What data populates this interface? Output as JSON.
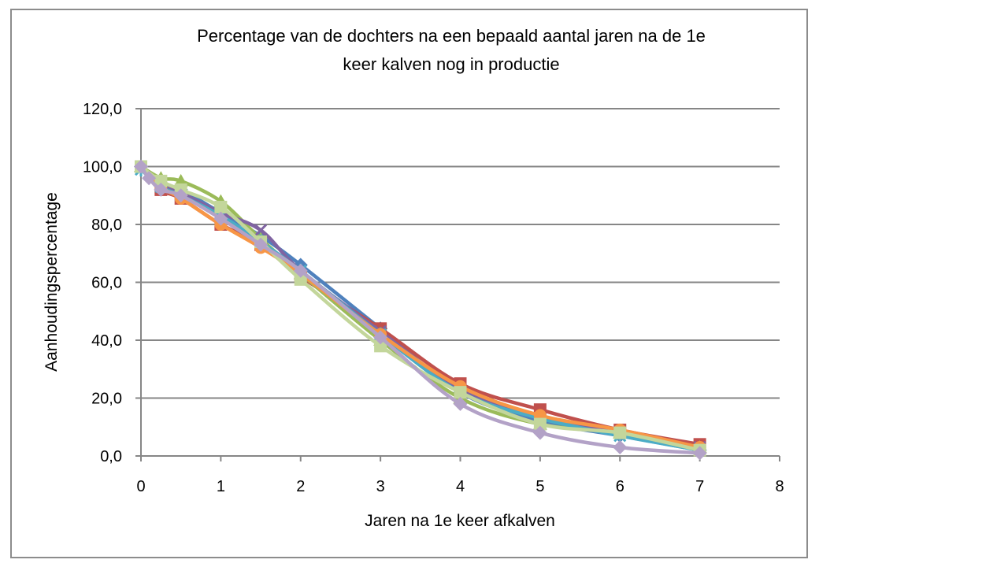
{
  "chart_data": {
    "type": "line",
    "title_lines": [
      "Percentage van de dochters na een bepaald aantal jaren na de 1e",
      "keer kalven nog in productie"
    ],
    "xlabel": "Jaren na 1e keer afkalven",
    "ylabel": "Aanhoudingspercentage",
    "xlim": [
      0,
      8
    ],
    "ylim": [
      0,
      120
    ],
    "x_ticks": [
      "0",
      "1",
      "2",
      "3",
      "4",
      "5",
      "6",
      "7",
      "8"
    ],
    "y_ticks": [
      "0,0",
      "20,0",
      "40,0",
      "60,0",
      "80,0",
      "100,0",
      "120,0"
    ],
    "grid": "horizontal",
    "legend": "none",
    "series": [
      {
        "color": "#4f81bd",
        "marker": "diamond",
        "x": [
          0,
          0.25,
          0.5,
          1,
          1.5,
          2,
          3,
          4,
          5,
          6,
          7
        ],
        "y": [
          100,
          94,
          92,
          84,
          76,
          66,
          44,
          22,
          12,
          7,
          2
        ]
      },
      {
        "color": "#c0504d",
        "marker": "square",
        "x": [
          0,
          0.25,
          0.5,
          1,
          1.5,
          2,
          3,
          4,
          5,
          6,
          7
        ],
        "y": [
          100,
          92,
          89,
          80,
          73,
          62,
          44,
          25,
          16,
          9,
          4
        ]
      },
      {
        "color": "#9bbb59",
        "marker": "triangle",
        "x": [
          0,
          0.25,
          0.5,
          1,
          1.5,
          2,
          3,
          4,
          5,
          6,
          7
        ],
        "y": [
          100,
          96,
          95,
          88,
          75,
          63,
          40,
          20,
          11,
          8,
          3
        ]
      },
      {
        "color": "#8064a2",
        "marker": "cross",
        "x": [
          0,
          0.25,
          0.5,
          1,
          1.5,
          2,
          3,
          4,
          5,
          6,
          7
        ],
        "y": [
          100,
          94,
          91,
          84,
          78,
          64,
          43,
          23,
          13,
          8,
          3
        ]
      },
      {
        "color": "#4bacc6",
        "marker": "star",
        "x": [
          0,
          0.25,
          0.5,
          1,
          1.5,
          2,
          3,
          4,
          5,
          6,
          7
        ],
        "y": [
          99,
          93,
          90,
          83,
          74,
          64,
          42,
          22,
          13,
          7,
          2
        ]
      },
      {
        "color": "#f79646",
        "marker": "circle",
        "x": [
          0,
          0.25,
          0.5,
          1,
          1.5,
          2,
          3,
          4,
          5,
          6,
          7
        ],
        "y": [
          100,
          93,
          89,
          80,
          72,
          63,
          42,
          24,
          14,
          9,
          3
        ]
      },
      {
        "color": "#c3d69b",
        "marker": "square",
        "x": [
          0,
          0.25,
          0.5,
          1,
          1.5,
          2,
          3,
          4,
          5,
          6,
          7
        ],
        "y": [
          100,
          95,
          92,
          86,
          74,
          61,
          38,
          22,
          11,
          8,
          2
        ]
      },
      {
        "color": "#b3a2c7",
        "marker": "diamond",
        "x": [
          0,
          0.1,
          0.25,
          0.5,
          1,
          1.5,
          2,
          3,
          4,
          5,
          6,
          7
        ],
        "y": [
          100,
          96,
          92,
          90,
          82,
          73,
          64,
          41,
          18,
          8,
          3,
          1
        ]
      }
    ]
  }
}
